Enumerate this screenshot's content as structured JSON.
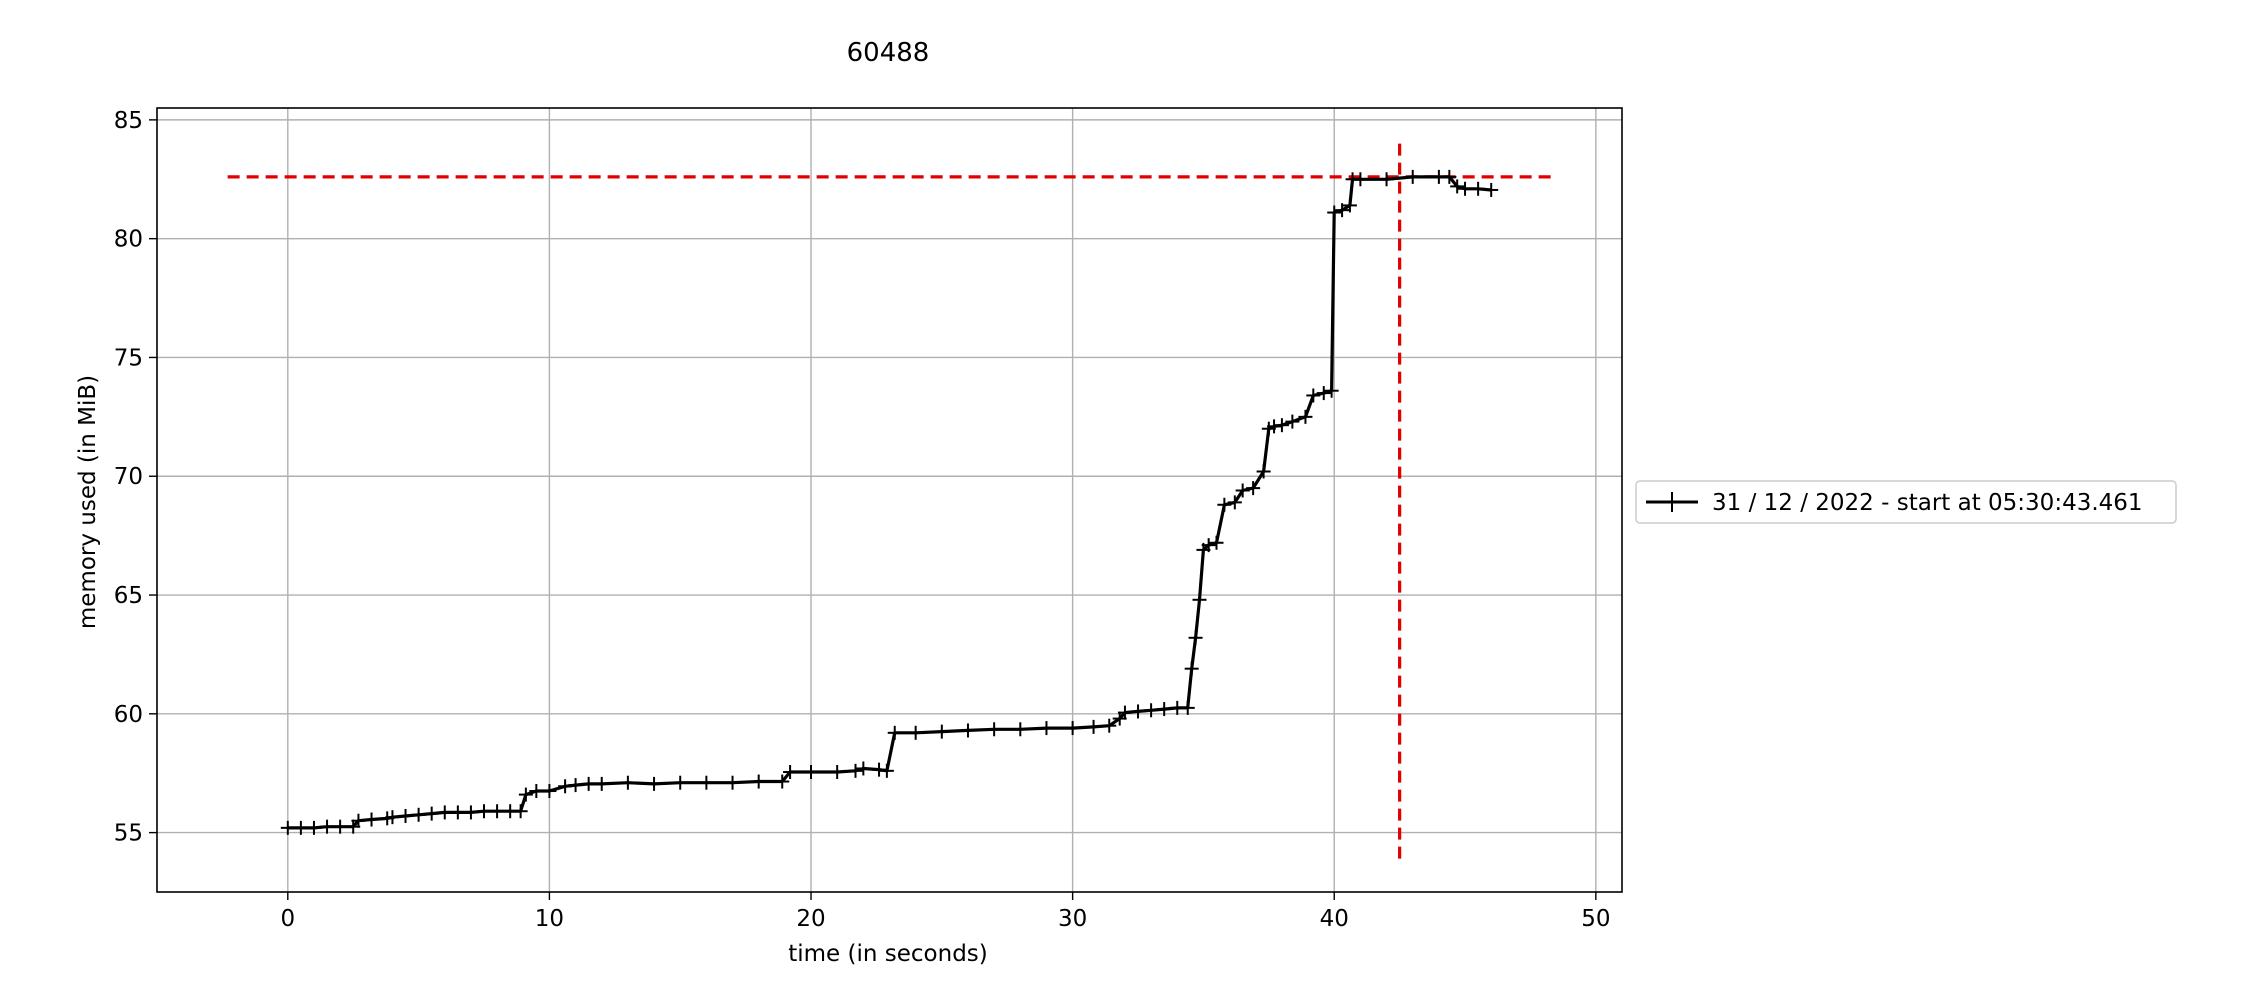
{
  "chart_data": {
    "type": "line",
    "title": "60488",
    "xlabel": "time (in seconds)",
    "ylabel": "memory used (in MiB)",
    "xlim": [
      -5,
      51
    ],
    "ylim": [
      52.5,
      85.5
    ],
    "xticks": [
      0,
      10,
      20,
      30,
      40,
      50
    ],
    "yticks": [
      55,
      60,
      65,
      70,
      75,
      80,
      85
    ],
    "xtick_labels": [
      "0",
      "10",
      "20",
      "30",
      "40",
      "50"
    ],
    "ytick_labels": [
      "55",
      "60",
      "65",
      "70",
      "75",
      "80",
      "85"
    ],
    "grid": true,
    "legend_position": "outside-right",
    "colors": {
      "series": "#000000",
      "reference": "#e00000",
      "grid": "#b0b0b0"
    },
    "series": [
      {
        "name": "31 / 12 / 2022 - start at 05:30:43.461",
        "marker": "+",
        "x": [
          0.0,
          0.5,
          1.0,
          1.5,
          2.0,
          2.5,
          2.7,
          3.2,
          3.8,
          4.0,
          4.5,
          5.0,
          5.5,
          6.0,
          6.5,
          7.0,
          7.5,
          8.0,
          8.5,
          8.9,
          9.1,
          9.5,
          10.0,
          10.6,
          11.0,
          11.5,
          12.0,
          13.0,
          14.0,
          15.0,
          16.0,
          17.0,
          18.0,
          18.9,
          19.2,
          20.0,
          21.0,
          21.7,
          22.0,
          22.6,
          22.9,
          23.2,
          24.0,
          25.0,
          26.0,
          27.0,
          28.0,
          29.0,
          30.0,
          30.8,
          31.4,
          31.8,
          32.0,
          32.5,
          33.0,
          33.5,
          34.0,
          34.4,
          34.55,
          34.7,
          34.85,
          35.0,
          35.2,
          35.5,
          35.8,
          36.2,
          36.5,
          36.9,
          37.3,
          37.5,
          37.7,
          38.0,
          38.4,
          38.9,
          39.2,
          39.6,
          39.9,
          40.0,
          40.3,
          40.6,
          40.7,
          41.0,
          42.0,
          43.0,
          44.0,
          44.4,
          44.7,
          45.0,
          45.5,
          46.0
        ],
        "y": [
          55.2,
          55.2,
          55.2,
          55.25,
          55.25,
          55.25,
          55.5,
          55.55,
          55.6,
          55.65,
          55.7,
          55.75,
          55.8,
          55.85,
          55.85,
          55.85,
          55.9,
          55.9,
          55.9,
          55.9,
          56.6,
          56.75,
          56.75,
          56.95,
          57.0,
          57.05,
          57.05,
          57.1,
          57.05,
          57.1,
          57.1,
          57.1,
          57.15,
          57.15,
          57.55,
          57.55,
          57.55,
          57.6,
          57.7,
          57.65,
          57.6,
          59.2,
          59.2,
          59.25,
          59.3,
          59.35,
          59.35,
          59.4,
          59.4,
          59.45,
          59.5,
          59.8,
          60.05,
          60.1,
          60.15,
          60.2,
          60.25,
          60.25,
          61.9,
          63.2,
          64.8,
          66.9,
          67.1,
          67.2,
          68.8,
          68.9,
          69.4,
          69.5,
          70.2,
          72.0,
          72.1,
          72.15,
          72.3,
          72.5,
          73.4,
          73.5,
          73.6,
          81.1,
          81.2,
          81.4,
          82.5,
          82.5,
          82.5,
          82.6,
          82.6,
          82.6,
          82.2,
          82.1,
          82.1,
          82.05
        ]
      }
    ],
    "reference_lines": {
      "max_memory": 82.6,
      "max_time": 42.5,
      "hline_xrange": [
        -2.3,
        48.3
      ],
      "vline_yrange": [
        53.9,
        84.0
      ]
    }
  }
}
